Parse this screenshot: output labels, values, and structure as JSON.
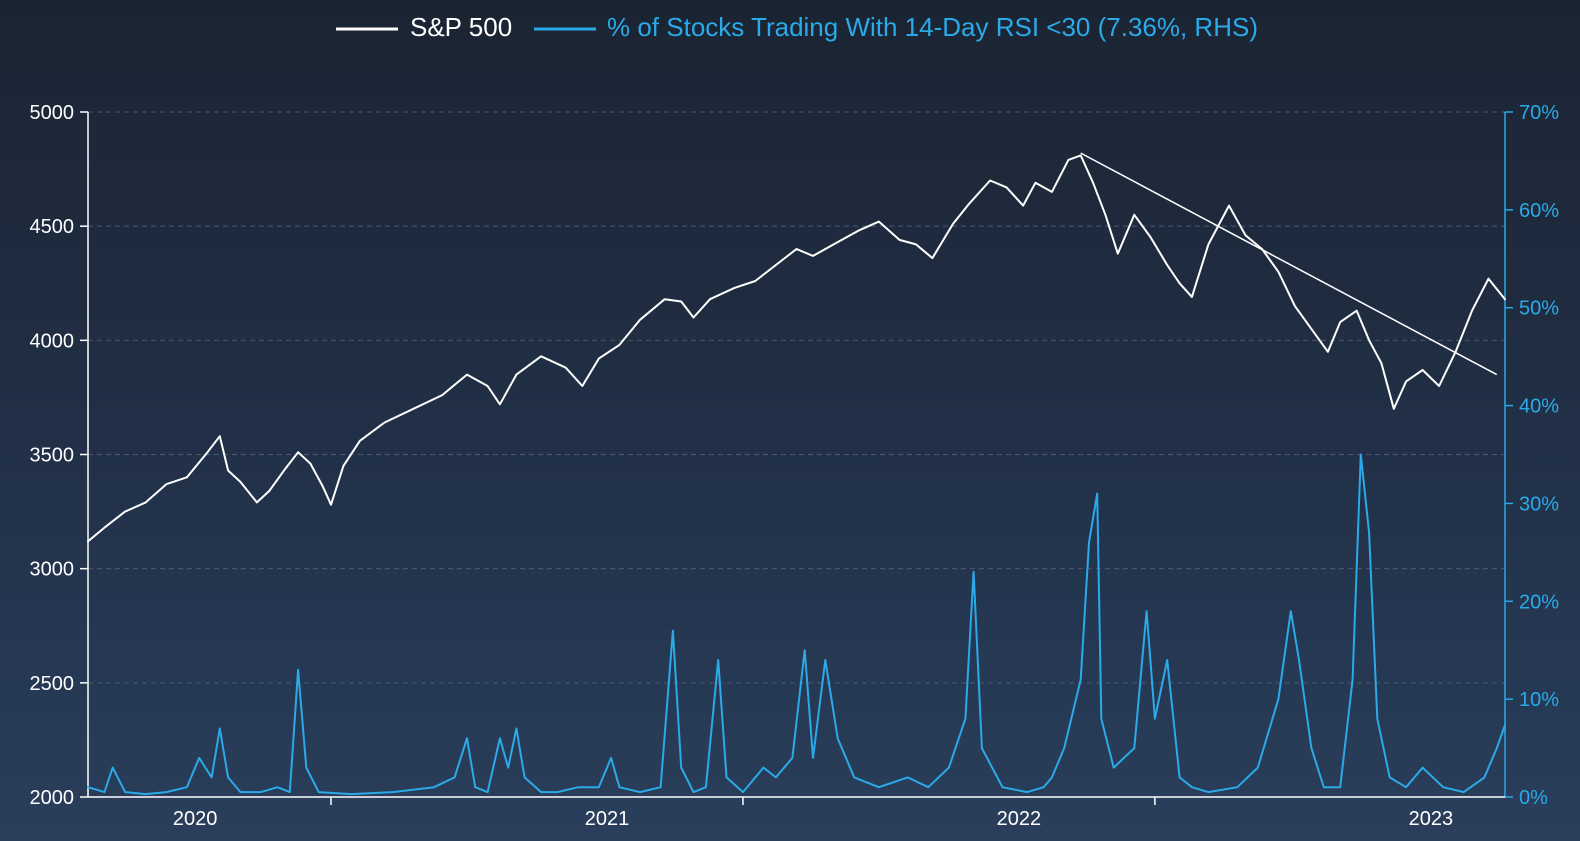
{
  "chart_data": {
    "type": "line",
    "colors": {
      "spx": "#ffffff",
      "rsi": "#2aaae8",
      "left_axis": "#ffffff",
      "right_axis": "#2aaae8",
      "grid": "#4a5a6e"
    },
    "legend": {
      "spx_label": "S&P 500",
      "rsi_label": "% of Stocks Trading With 14-Day RSI <30 (7.36%, RHS)"
    },
    "x_axis": {
      "range": [
        2019.66,
        2023.1
      ],
      "tick_labels": [
        {
          "label": "2020",
          "x": 2019.92
        },
        {
          "label": "2021",
          "x": 2020.92
        },
        {
          "label": "2022",
          "x": 2021.92
        },
        {
          "label": "2023",
          "x": 2022.92
        }
      ],
      "tick_marks": [
        2020.25,
        2021.25,
        2022.25
      ]
    },
    "y_left": {
      "range": [
        2000,
        5000
      ],
      "ticks": [
        2000,
        2500,
        3000,
        3500,
        4000,
        4500,
        5000
      ],
      "tick_labels": [
        "2000",
        "2500",
        "3000",
        "3500",
        "4000",
        "4500",
        "5000"
      ]
    },
    "y_right": {
      "range": [
        0,
        70
      ],
      "ticks": [
        0,
        10,
        20,
        30,
        40,
        50,
        60,
        70
      ],
      "tick_labels": [
        "0%",
        "10%",
        "20%",
        "30%",
        "40%",
        "50%",
        "60%",
        "70%"
      ]
    },
    "series": [
      {
        "name": "S&P 500",
        "axis": "left",
        "points": [
          [
            2019.66,
            3120
          ],
          [
            2019.7,
            3180
          ],
          [
            2019.75,
            3250
          ],
          [
            2019.8,
            3290
          ],
          [
            2019.85,
            3370
          ],
          [
            2019.9,
            3400
          ],
          [
            2019.95,
            3510
          ],
          [
            2019.98,
            3580
          ],
          [
            2020.0,
            3430
          ],
          [
            2020.03,
            3380
          ],
          [
            2020.07,
            3290
          ],
          [
            2020.1,
            3340
          ],
          [
            2020.14,
            3440
          ],
          [
            2020.17,
            3510
          ],
          [
            2020.2,
            3460
          ],
          [
            2020.23,
            3360
          ],
          [
            2020.25,
            3280
          ],
          [
            2020.28,
            3450
          ],
          [
            2020.32,
            3560
          ],
          [
            2020.38,
            3640
          ],
          [
            2020.45,
            3700
          ],
          [
            2020.52,
            3760
          ],
          [
            2020.58,
            3850
          ],
          [
            2020.63,
            3800
          ],
          [
            2020.66,
            3720
          ],
          [
            2020.7,
            3850
          ],
          [
            2020.76,
            3930
          ],
          [
            2020.82,
            3880
          ],
          [
            2020.86,
            3800
          ],
          [
            2020.9,
            3920
          ],
          [
            2020.95,
            3980
          ],
          [
            2021.0,
            4090
          ],
          [
            2021.06,
            4180
          ],
          [
            2021.1,
            4170
          ],
          [
            2021.13,
            4100
          ],
          [
            2021.17,
            4180
          ],
          [
            2021.23,
            4230
          ],
          [
            2021.28,
            4260
          ],
          [
            2021.33,
            4330
          ],
          [
            2021.38,
            4400
          ],
          [
            2021.42,
            4370
          ],
          [
            2021.47,
            4420
          ],
          [
            2021.53,
            4480
          ],
          [
            2021.58,
            4520
          ],
          [
            2021.63,
            4440
          ],
          [
            2021.67,
            4420
          ],
          [
            2021.71,
            4360
          ],
          [
            2021.76,
            4510
          ],
          [
            2021.8,
            4600
          ],
          [
            2021.85,
            4700
          ],
          [
            2021.89,
            4670
          ],
          [
            2021.93,
            4590
          ],
          [
            2021.96,
            4690
          ],
          [
            2022.0,
            4650
          ],
          [
            2022.04,
            4790
          ],
          [
            2022.07,
            4810
          ],
          [
            2022.1,
            4690
          ],
          [
            2022.13,
            4550
          ],
          [
            2022.16,
            4380
          ],
          [
            2022.2,
            4550
          ],
          [
            2022.24,
            4450
          ],
          [
            2022.28,
            4330
          ],
          [
            2022.31,
            4250
          ],
          [
            2022.34,
            4190
          ],
          [
            2022.38,
            4420
          ],
          [
            2022.43,
            4590
          ],
          [
            2022.47,
            4460
          ],
          [
            2022.51,
            4400
          ],
          [
            2022.55,
            4300
          ],
          [
            2022.59,
            4150
          ],
          [
            2022.63,
            4050
          ],
          [
            2022.67,
            3950
          ],
          [
            2022.7,
            4080
          ],
          [
            2022.74,
            4130
          ],
          [
            2022.77,
            4000
          ],
          [
            2022.8,
            3900
          ],
          [
            2022.83,
            3700
          ],
          [
            2022.86,
            3820
          ],
          [
            2022.9,
            3870
          ],
          [
            2022.94,
            3800
          ],
          [
            2022.98,
            3950
          ],
          [
            2023.02,
            4130
          ],
          [
            2023.06,
            4270
          ],
          [
            2023.1,
            4180
          ]
        ]
      },
      {
        "name": "% of Stocks Trading With 14-Day RSI <30",
        "axis": "right",
        "points": [
          [
            2019.66,
            1
          ],
          [
            2019.7,
            0.5
          ],
          [
            2019.72,
            3
          ],
          [
            2019.75,
            0.5
          ],
          [
            2019.8,
            0.3
          ],
          [
            2019.85,
            0.5
          ],
          [
            2019.9,
            1
          ],
          [
            2019.93,
            4
          ],
          [
            2019.96,
            2
          ],
          [
            2019.98,
            7
          ],
          [
            2020.0,
            2
          ],
          [
            2020.03,
            0.5
          ],
          [
            2020.08,
            0.5
          ],
          [
            2020.12,
            1
          ],
          [
            2020.15,
            0.5
          ],
          [
            2020.17,
            13
          ],
          [
            2020.19,
            3
          ],
          [
            2020.22,
            0.5
          ],
          [
            2020.3,
            0.3
          ],
          [
            2020.4,
            0.5
          ],
          [
            2020.5,
            1
          ],
          [
            2020.55,
            2
          ],
          [
            2020.58,
            6
          ],
          [
            2020.6,
            1
          ],
          [
            2020.63,
            0.5
          ],
          [
            2020.66,
            6
          ],
          [
            2020.68,
            3
          ],
          [
            2020.7,
            7
          ],
          [
            2020.72,
            2
          ],
          [
            2020.76,
            0.5
          ],
          [
            2020.8,
            0.5
          ],
          [
            2020.85,
            1
          ],
          [
            2020.9,
            1
          ],
          [
            2020.93,
            4
          ],
          [
            2020.95,
            1
          ],
          [
            2021.0,
            0.5
          ],
          [
            2021.05,
            1
          ],
          [
            2021.08,
            17
          ],
          [
            2021.1,
            3
          ],
          [
            2021.13,
            0.5
          ],
          [
            2021.16,
            1
          ],
          [
            2021.19,
            14
          ],
          [
            2021.21,
            2
          ],
          [
            2021.25,
            0.5
          ],
          [
            2021.3,
            3
          ],
          [
            2021.33,
            2
          ],
          [
            2021.37,
            4
          ],
          [
            2021.4,
            15
          ],
          [
            2021.42,
            4
          ],
          [
            2021.45,
            14
          ],
          [
            2021.48,
            6
          ],
          [
            2021.52,
            2
          ],
          [
            2021.58,
            1
          ],
          [
            2021.65,
            2
          ],
          [
            2021.7,
            1
          ],
          [
            2021.75,
            3
          ],
          [
            2021.79,
            8
          ],
          [
            2021.81,
            23
          ],
          [
            2021.83,
            5
          ],
          [
            2021.88,
            1
          ],
          [
            2021.94,
            0.5
          ],
          [
            2021.98,
            1
          ],
          [
            2022.0,
            2
          ],
          [
            2022.03,
            5
          ],
          [
            2022.07,
            12
          ],
          [
            2022.09,
            26
          ],
          [
            2022.11,
            31
          ],
          [
            2022.12,
            8
          ],
          [
            2022.15,
            3
          ],
          [
            2022.2,
            5
          ],
          [
            2022.23,
            19
          ],
          [
            2022.25,
            8
          ],
          [
            2022.28,
            14
          ],
          [
            2022.31,
            2
          ],
          [
            2022.34,
            1
          ],
          [
            2022.38,
            0.5
          ],
          [
            2022.45,
            1
          ],
          [
            2022.5,
            3
          ],
          [
            2022.55,
            10
          ],
          [
            2022.58,
            19
          ],
          [
            2022.6,
            14
          ],
          [
            2022.63,
            5
          ],
          [
            2022.66,
            1
          ],
          [
            2022.7,
            1
          ],
          [
            2022.73,
            12
          ],
          [
            2022.75,
            35
          ],
          [
            2022.77,
            27
          ],
          [
            2022.79,
            8
          ],
          [
            2022.82,
            2
          ],
          [
            2022.86,
            1
          ],
          [
            2022.9,
            3
          ],
          [
            2022.95,
            1
          ],
          [
            2023.0,
            0.5
          ],
          [
            2023.05,
            2
          ],
          [
            2023.08,
            5
          ],
          [
            2023.1,
            7.36
          ]
        ]
      }
    ],
    "trendline": {
      "name": "downtrend line",
      "axis": "left",
      "from": [
        2022.07,
        4820
      ],
      "to": [
        2023.08,
        3850
      ]
    }
  }
}
